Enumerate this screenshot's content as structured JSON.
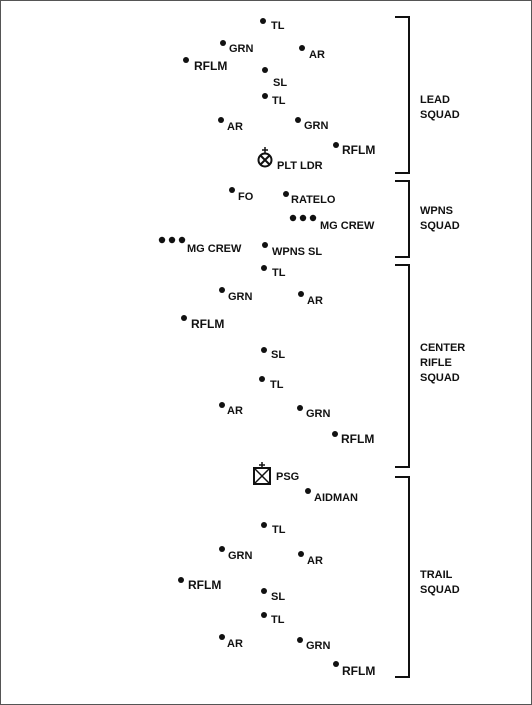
{
  "squads": [
    {
      "name_lines": [
        "LEAD",
        "SQUAD"
      ],
      "members": [
        "TL",
        "GRN",
        "AR",
        "RFLM",
        "SL",
        "TL",
        "AR",
        "GRN",
        "RFLM",
        "PLT LDR"
      ]
    },
    {
      "name_lines": [
        "WPNS",
        "SQUAD"
      ],
      "members": [
        "FO",
        "RATELO",
        "MG CREW",
        "MG CREW",
        "WPNS SL"
      ]
    },
    {
      "name_lines": [
        "CENTER",
        "RIFLE",
        "SQUAD"
      ],
      "members": [
        "TL",
        "GRN",
        "AR",
        "RFLM",
        "SL",
        "TL",
        "AR",
        "GRN",
        "RFLM"
      ]
    },
    {
      "name_lines": [
        "TRAIL",
        "SQUAD"
      ],
      "members": [
        "PSG",
        "AIDMAN",
        "TL",
        "GRN",
        "AR",
        "RFLM",
        "SL",
        "TL",
        "AR",
        "GRN",
        "RFLM"
      ]
    }
  ]
}
